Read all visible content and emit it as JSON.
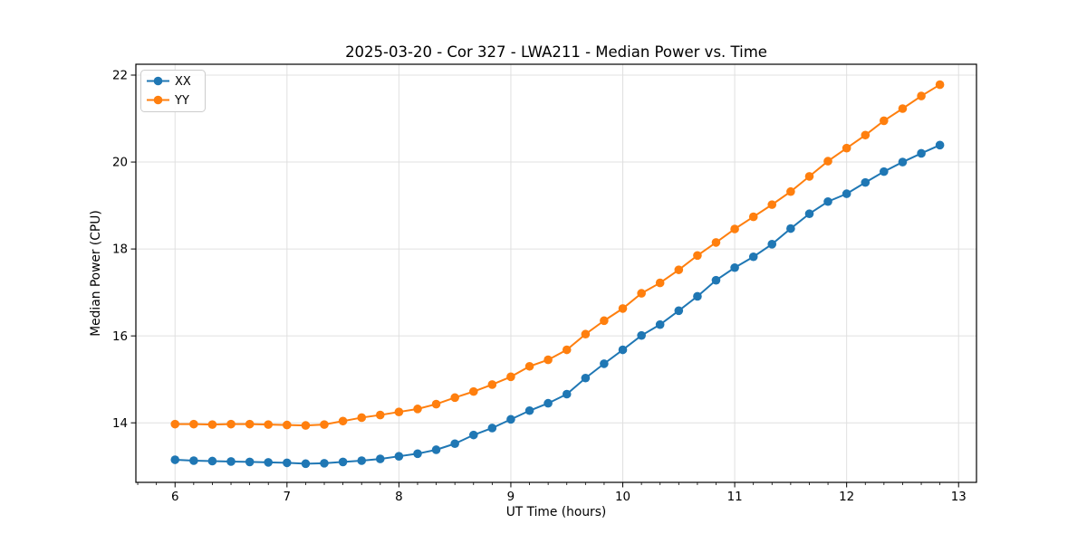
{
  "chart_data": {
    "type": "line",
    "title": "2025-03-20 - Cor 327 - LWA211 - Median Power vs. Time",
    "xlabel": "UT Time (hours)",
    "ylabel": "Median Power (CPU)",
    "x": [
      6.0,
      6.167,
      6.333,
      6.5,
      6.667,
      6.833,
      7.0,
      7.167,
      7.333,
      7.5,
      7.667,
      7.833,
      8.0,
      8.167,
      8.333,
      8.5,
      8.667,
      8.833,
      9.0,
      9.167,
      9.333,
      9.5,
      9.667,
      9.833,
      10.0,
      10.167,
      10.333,
      10.5,
      10.667,
      10.833,
      11.0,
      11.167,
      11.333,
      11.5,
      11.667,
      11.833,
      12.0,
      12.167,
      12.333,
      12.5,
      12.667,
      12.833
    ],
    "series": [
      {
        "name": "XX",
        "color": "#1f77b4",
        "values": [
          13.15,
          13.13,
          13.12,
          13.11,
          13.1,
          13.09,
          13.08,
          13.06,
          13.07,
          13.1,
          13.13,
          13.17,
          13.23,
          13.29,
          13.38,
          13.52,
          13.72,
          13.88,
          14.08,
          14.28,
          14.45,
          14.66,
          15.03,
          15.36,
          15.68,
          16.01,
          16.26,
          16.58,
          16.91,
          17.28,
          17.57,
          17.82,
          18.11,
          18.47,
          18.81,
          19.09,
          19.27,
          19.53,
          19.78,
          20.0,
          20.2,
          20.39
        ]
      },
      {
        "name": "YY",
        "color": "#ff7f0e",
        "values": [
          13.97,
          13.97,
          13.96,
          13.97,
          13.97,
          13.96,
          13.95,
          13.94,
          13.96,
          14.04,
          14.12,
          14.18,
          14.25,
          14.32,
          14.43,
          14.58,
          14.72,
          14.88,
          15.06,
          15.3,
          15.45,
          15.68,
          16.04,
          16.35,
          16.63,
          16.98,
          17.22,
          17.52,
          17.85,
          18.15,
          18.46,
          18.74,
          19.02,
          19.32,
          19.67,
          20.02,
          20.32,
          20.62,
          20.95,
          21.23,
          21.52,
          21.78
        ]
      }
    ],
    "xlim": [
      5.65,
      13.16
    ],
    "ylim": [
      12.63,
      22.25
    ],
    "xticks": [
      6,
      7,
      8,
      9,
      10,
      11,
      12,
      13
    ],
    "yticks": [
      14,
      16,
      18,
      20,
      22
    ],
    "x_minor_step_hours": 0.1667,
    "grid": true,
    "legend_position": "upper left",
    "marker": "circle",
    "colors": {
      "background": "#ffffff",
      "grid": "#e0e0e0",
      "spine": "#000000",
      "legend_border": "#cccccc"
    }
  }
}
